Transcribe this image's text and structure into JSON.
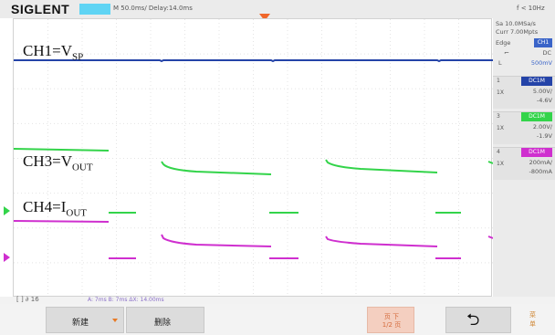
{
  "header": {
    "brand": "SIGLENT",
    "timebase": "M 50.0ms/ Delay:14.0ms",
    "frequency": "f < 10Hz"
  },
  "acquisition": {
    "sample_rate": "Sa 10.0MSa/s",
    "memory_depth": "Curr 7.00Mpts"
  },
  "trigger": {
    "type_label": "Edge",
    "source": "CH1",
    "coupling": "DC",
    "level_key": "L",
    "level": "500mV"
  },
  "channels": [
    {
      "number": "1",
      "name": "DC1M",
      "probe": "1X",
      "scale": "5.00V/",
      "offset": "-4.6V",
      "color": "#2443a8"
    },
    {
      "number": "3",
      "name": "DC1M",
      "probe": "1X",
      "scale": "2.00V/",
      "offset": "-1.9V",
      "color": "#33d44a"
    },
    {
      "number": "4",
      "name": "DC1M",
      "probe": "1X",
      "scale": "200mA/",
      "offset": "-800mA",
      "color": "#cf2fcf"
    }
  ],
  "trace_labels": {
    "ch1": {
      "main": "CH1=V",
      "sub": "SP"
    },
    "ch3": {
      "main": "CH3=V",
      "sub": "OUT"
    },
    "ch4": {
      "main": "CH4=I",
      "sub": "OUT"
    }
  },
  "status": {
    "left": "[ ]  ∂ 16",
    "cursors": "A: 7ms  B: 7ms  ΔX: 14.00ms"
  },
  "menu": {
    "new_label": "新建",
    "delete_label": "删除",
    "page_line1": "页 下",
    "page_line2": "1/2 页",
    "side_line1": "菜",
    "side_line2": "单"
  },
  "colors": {
    "ch1": "#2443a8",
    "ch3": "#33d44a",
    "ch4": "#cf2fcf",
    "accent": "#f0662a"
  }
}
